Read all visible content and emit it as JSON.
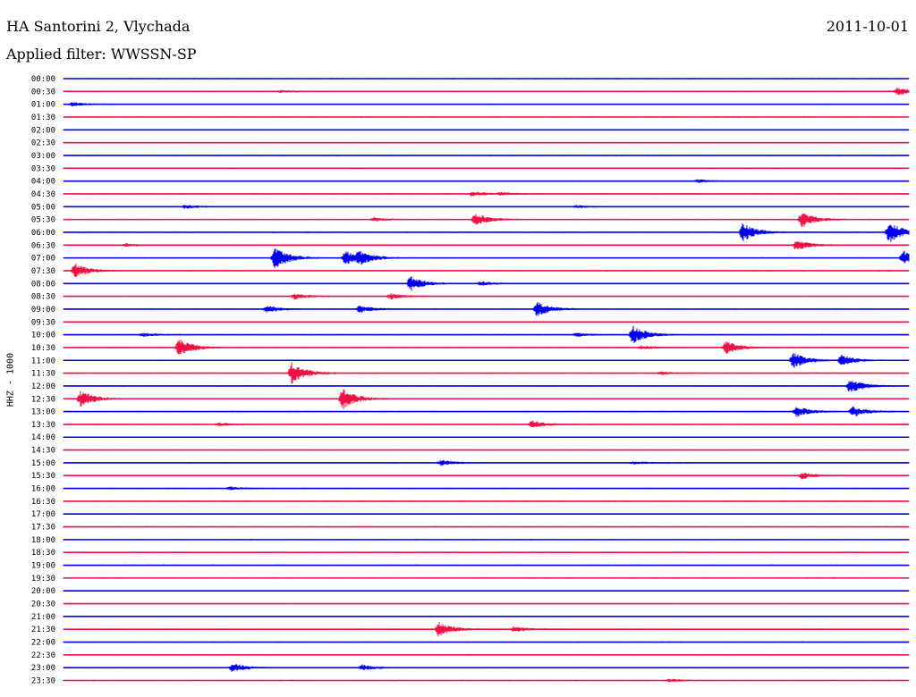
{
  "header": {
    "station": "HA Santorini 2, Vlychada",
    "filter": "Applied filter: WWSSN-SP",
    "date": "2011-10-01"
  },
  "channel_label": "HHZ - 1000",
  "colors": {
    "even_trace": "#0000ee",
    "odd_trace": "#ee1144"
  },
  "chart_data": {
    "type": "line",
    "title": "HA Santorini 2, Vlychada",
    "subtitle": "Applied filter: WWSSN-SP",
    "ylabel": "HHZ - 1000",
    "xlabel": "",
    "trace_start_times": [
      "00:00",
      "00:30",
      "01:00",
      "01:30",
      "02:00",
      "02:30",
      "03:00",
      "03:30",
      "04:00",
      "04:30",
      "05:00",
      "05:30",
      "06:00",
      "06:30",
      "07:00",
      "07:30",
      "08:00",
      "08:30",
      "09:00",
      "09:30",
      "10:00",
      "10:30",
      "11:00",
      "11:30",
      "12:00",
      "12:30",
      "13:00",
      "13:30",
      "14:00",
      "14:30",
      "15:00",
      "15:30",
      "16:00",
      "16:30",
      "17:00",
      "17:30",
      "18:00",
      "18:30",
      "19:00",
      "19:30",
      "20:00",
      "20:30",
      "21:00",
      "21:30",
      "22:00",
      "22:30",
      "23:00",
      "23:30"
    ],
    "trace_duration_minutes": 30,
    "grid": false,
    "legend": "none",
    "events": [
      {
        "start": "00:30",
        "minute": 29.6,
        "amplitude": 1.2
      },
      {
        "start": "00:30",
        "minute": 7.7,
        "amplitude": 0.3
      },
      {
        "start": "01:00",
        "minute": 0.3,
        "amplitude": 0.5
      },
      {
        "start": "04:00",
        "minute": 22.5,
        "amplitude": 0.4
      },
      {
        "start": "04:30",
        "minute": 14.5,
        "amplitude": 0.7
      },
      {
        "start": "04:30",
        "minute": 15.5,
        "amplitude": 0.4
      },
      {
        "start": "05:00",
        "minute": 4.3,
        "amplitude": 0.5
      },
      {
        "start": "05:00",
        "minute": 18.2,
        "amplitude": 0.4
      },
      {
        "start": "05:30",
        "minute": 14.6,
        "amplitude": 1.8
      },
      {
        "start": "05:30",
        "minute": 26.2,
        "amplitude": 2.2
      },
      {
        "start": "05:30",
        "minute": 11.0,
        "amplitude": 0.5
      },
      {
        "start": "06:00",
        "minute": 24.1,
        "amplitude": 2.5
      },
      {
        "start": "06:00",
        "minute": 29.3,
        "amplitude": 3.0
      },
      {
        "start": "06:30",
        "minute": 26.0,
        "amplitude": 1.5
      },
      {
        "start": "06:30",
        "minute": 2.2,
        "amplitude": 0.4
      },
      {
        "start": "07:00",
        "minute": 7.5,
        "amplitude": 3.2
      },
      {
        "start": "07:00",
        "minute": 10.5,
        "amplitude": 1.5
      },
      {
        "start": "07:00",
        "minute": 10.0,
        "amplitude": 2.0
      },
      {
        "start": "07:00",
        "minute": 29.8,
        "amplitude": 2.0
      },
      {
        "start": "07:30",
        "minute": 0.4,
        "amplitude": 2.0
      },
      {
        "start": "08:00",
        "minute": 12.3,
        "amplitude": 2.0
      },
      {
        "start": "08:00",
        "minute": 14.8,
        "amplitude": 0.5
      },
      {
        "start": "08:30",
        "minute": 8.2,
        "amplitude": 0.8
      },
      {
        "start": "08:30",
        "minute": 11.6,
        "amplitude": 0.8
      },
      {
        "start": "09:00",
        "minute": 7.2,
        "amplitude": 1.0
      },
      {
        "start": "09:00",
        "minute": 10.5,
        "amplitude": 1.0
      },
      {
        "start": "09:00",
        "minute": 16.8,
        "amplitude": 2.0
      },
      {
        "start": "10:00",
        "minute": 20.2,
        "amplitude": 2.5
      },
      {
        "start": "10:00",
        "minute": 2.8,
        "amplitude": 0.5
      },
      {
        "start": "10:00",
        "minute": 18.2,
        "amplitude": 0.5
      },
      {
        "start": "10:30",
        "minute": 4.1,
        "amplitude": 2.4
      },
      {
        "start": "10:30",
        "minute": 23.5,
        "amplitude": 1.8
      },
      {
        "start": "10:30",
        "minute": 20.5,
        "amplitude": 0.5
      },
      {
        "start": "11:00",
        "minute": 25.9,
        "amplitude": 2.2
      },
      {
        "start": "11:00",
        "minute": 27.6,
        "amplitude": 1.5
      },
      {
        "start": "11:30",
        "minute": 8.1,
        "amplitude": 3.0
      },
      {
        "start": "11:30",
        "minute": 21.2,
        "amplitude": 0.4
      },
      {
        "start": "12:00",
        "minute": 27.9,
        "amplitude": 2.0
      },
      {
        "start": "12:30",
        "minute": 0.6,
        "amplitude": 2.2
      },
      {
        "start": "12:30",
        "minute": 9.9,
        "amplitude": 3.0
      },
      {
        "start": "13:00",
        "minute": 26.0,
        "amplitude": 1.5
      },
      {
        "start": "13:00",
        "minute": 28.0,
        "amplitude": 1.5
      },
      {
        "start": "13:30",
        "minute": 16.6,
        "amplitude": 1.0
      },
      {
        "start": "13:30",
        "minute": 5.5,
        "amplitude": 0.4
      },
      {
        "start": "15:00",
        "minute": 13.4,
        "amplitude": 0.8
      },
      {
        "start": "15:00",
        "minute": 20.2,
        "amplitude": 0.4
      },
      {
        "start": "15:30",
        "minute": 26.2,
        "amplitude": 1.0
      },
      {
        "start": "16:00",
        "minute": 5.9,
        "amplitude": 0.4
      },
      {
        "start": "21:30",
        "minute": 13.3,
        "amplitude": 2.0
      },
      {
        "start": "21:30",
        "minute": 16.0,
        "amplitude": 0.8
      },
      {
        "start": "23:00",
        "minute": 6.0,
        "amplitude": 1.2
      },
      {
        "start": "23:00",
        "minute": 10.6,
        "amplitude": 0.8
      },
      {
        "start": "23:30",
        "minute": 21.5,
        "amplitude": 0.4
      }
    ]
  }
}
